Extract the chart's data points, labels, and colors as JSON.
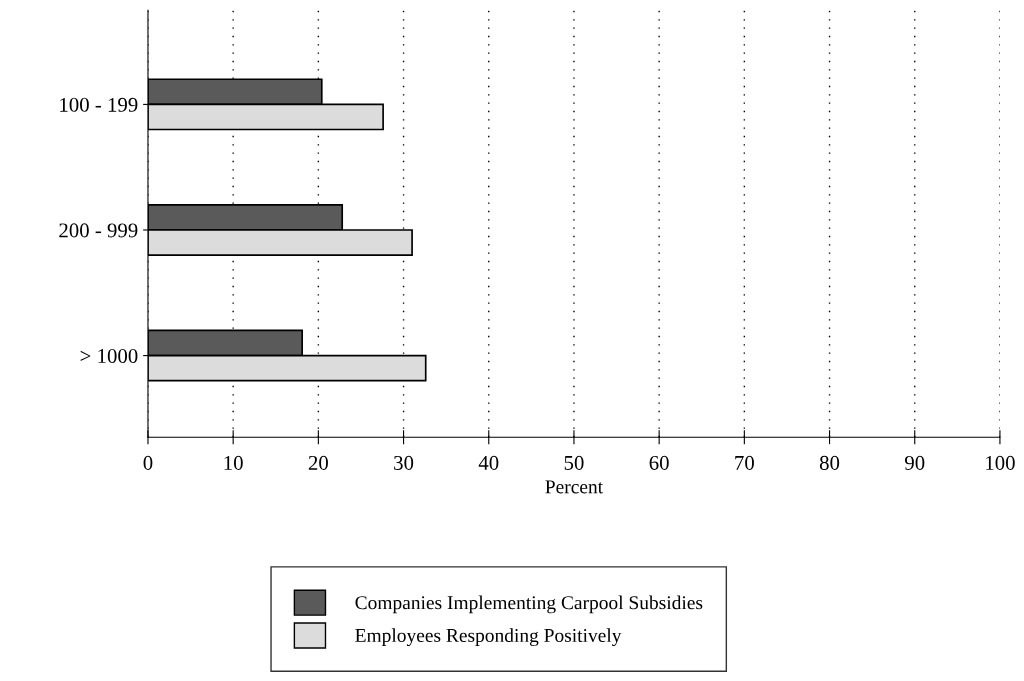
{
  "chart_data": {
    "type": "bar",
    "orientation": "horizontal",
    "xlabel": "Percent",
    "categories": [
      "100 - 199",
      "200 - 999",
      "> 1000"
    ],
    "series": [
      {
        "name": "Companies Implementing Carpool Subsidies",
        "color": "#5a5a5a",
        "values": [
          20.4,
          22.8,
          18.1
        ]
      },
      {
        "name": "Employees Responding Positively",
        "color": "#dcdcdc",
        "values": [
          27.6,
          31.0,
          32.6
        ]
      }
    ],
    "xlim": [
      0,
      100
    ],
    "xticks": [
      0,
      10,
      20,
      30,
      40,
      50,
      60,
      70,
      80,
      90,
      100
    ],
    "grid": "x",
    "legend": "bottom"
  }
}
